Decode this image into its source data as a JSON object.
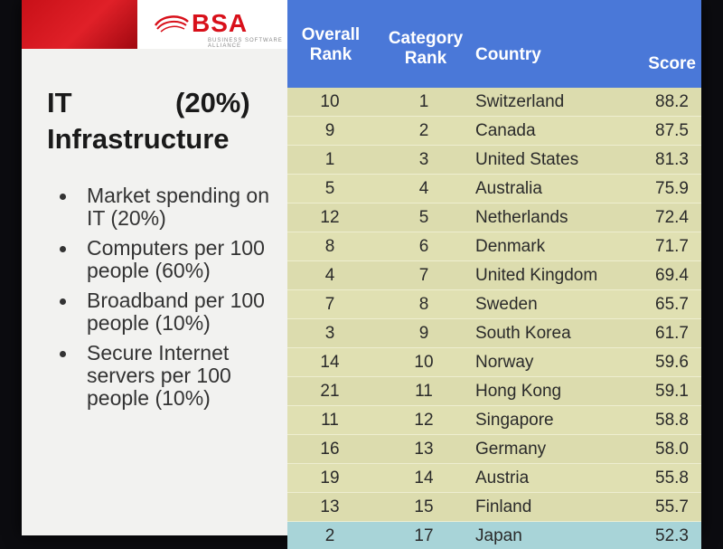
{
  "logo": {
    "text": "BSA",
    "subtext": "BUSINESS SOFTWARE ALLIANCE"
  },
  "slide": {
    "title_line1": "IT",
    "title_pct": "(20%)",
    "title_line2": "Infrastructure",
    "bullets": [
      "Market spending on IT (20%)",
      "Computers per 100 people (60%)",
      "Broadband per 100 people (10%)",
      "Secure Internet servers per 100 people (10%)"
    ]
  },
  "table": {
    "headers": {
      "overall": "Overall Rank",
      "category": "Category Rank",
      "country": "Country",
      "score": "Score"
    },
    "rows": [
      {
        "overall": "10",
        "category": "1",
        "country": "Switzerland",
        "score": "88.2"
      },
      {
        "overall": "9",
        "category": "2",
        "country": "Canada",
        "score": "87.5"
      },
      {
        "overall": "1",
        "category": "3",
        "country": "United States",
        "score": "81.3"
      },
      {
        "overall": "5",
        "category": "4",
        "country": "Australia",
        "score": "75.9"
      },
      {
        "overall": "12",
        "category": "5",
        "country": "Netherlands",
        "score": "72.4"
      },
      {
        "overall": "8",
        "category": "6",
        "country": "Denmark",
        "score": "71.7"
      },
      {
        "overall": "4",
        "category": "7",
        "country": "United Kingdom",
        "score": "69.4"
      },
      {
        "overall": "7",
        "category": "8",
        "country": "Sweden",
        "score": "65.7"
      },
      {
        "overall": "3",
        "category": "9",
        "country": "South Korea",
        "score": "61.7"
      },
      {
        "overall": "14",
        "category": "10",
        "country": "Norway",
        "score": "59.6"
      },
      {
        "overall": "21",
        "category": "11",
        "country": "Hong Kong",
        "score": "59.1"
      },
      {
        "overall": "11",
        "category": "12",
        "country": "Singapore",
        "score": "58.8"
      },
      {
        "overall": "16",
        "category": "13",
        "country": "Germany",
        "score": "58.0"
      },
      {
        "overall": "19",
        "category": "14",
        "country": "Austria",
        "score": "55.8"
      },
      {
        "overall": "13",
        "category": "15",
        "country": "Finland",
        "score": "55.7"
      },
      {
        "overall": "2",
        "category": "17",
        "country": "Japan",
        "score": "52.3"
      }
    ]
  },
  "colors": {
    "header_blue": "#4a78d8",
    "row_olive": "#dcdcae",
    "highlight_row": "#a8d4d8",
    "brand_red": "#d8101a"
  }
}
